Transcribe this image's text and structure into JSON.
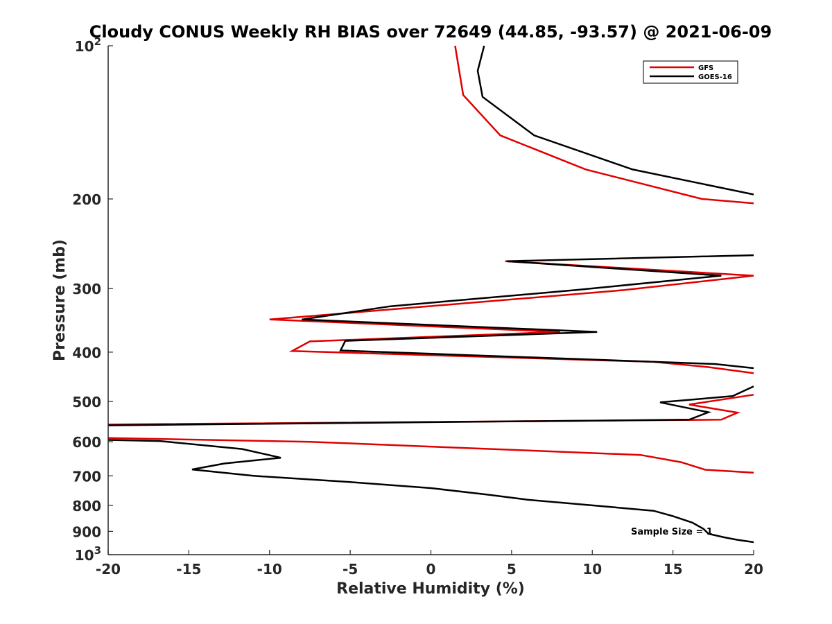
{
  "chart_data": {
    "type": "line",
    "title": "Cloudy CONUS Weekly RH BIAS over 72649 (44.85, -93.57) @ 2021-06-09",
    "xlabel": "Relative Humidity (%)",
    "ylabel": "Pressure (mb)",
    "xlim": [
      -20,
      20
    ],
    "ylim": [
      100,
      1000
    ],
    "yscale": "log",
    "y_reversed": true,
    "grid": false,
    "legend_position": "top-right",
    "x_ticks": [
      "-20",
      "-15",
      "-10",
      "-5",
      "0",
      "5",
      "10",
      "15",
      "20"
    ],
    "y_ticks": [
      {
        "value": 100,
        "label": "10",
        "exp": "2"
      },
      {
        "value": 200,
        "label": "200"
      },
      {
        "value": 300,
        "label": "300"
      },
      {
        "value": 400,
        "label": "400"
      },
      {
        "value": 500,
        "label": "500"
      },
      {
        "value": 600,
        "label": "600"
      },
      {
        "value": 700,
        "label": "700"
      },
      {
        "value": 800,
        "label": "800"
      },
      {
        "value": 900,
        "label": "900"
      },
      {
        "value": 1000,
        "label": "10",
        "exp": "3"
      }
    ],
    "annotation": "Sample Size = 1",
    "series": [
      {
        "name": "GFS",
        "color": "#e00000",
        "points": [
          [
            1.5,
            100
          ],
          [
            2.0,
            125
          ],
          [
            4.3,
            150
          ],
          [
            9.6,
            175
          ],
          [
            16.8,
            200
          ],
          [
            20.0,
            204
          ],
          [
            null,
            null
          ],
          [
            4.6,
            265
          ],
          [
            20.0,
            283
          ],
          [
            12.0,
            302
          ],
          [
            -10.0,
            345
          ],
          [
            8.0,
            365
          ],
          [
            -7.5,
            381
          ],
          [
            -8.6,
            398
          ],
          [
            13.8,
            418
          ],
          [
            17.2,
            428
          ],
          [
            20.0,
            440
          ],
          [
            null,
            null
          ],
          [
            20.0,
            485
          ],
          [
            16.0,
            507
          ],
          [
            19.0,
            526
          ],
          [
            18.0,
            543
          ],
          [
            -20.0,
            555
          ],
          [
            null,
            null
          ],
          [
            -20.0,
            590
          ],
          [
            -7.5,
            600
          ],
          [
            13.0,
            637
          ],
          [
            15.5,
            658
          ],
          [
            17.0,
            681
          ],
          [
            20.0,
            690
          ]
        ]
      },
      {
        "name": "GOES-16",
        "color": "#000000",
        "points": [
          [
            3.3,
            100
          ],
          [
            2.9,
            112
          ],
          [
            3.2,
            126
          ],
          [
            6.4,
            150
          ],
          [
            12.5,
            175
          ],
          [
            20.0,
            196
          ],
          [
            null,
            null
          ],
          [
            20.0,
            258
          ],
          [
            4.7,
            265
          ],
          [
            18.0,
            283
          ],
          [
            9.0,
            302
          ],
          [
            -2.5,
            325
          ],
          [
            -8.0,
            345
          ],
          [
            10.3,
            365
          ],
          [
            -5.3,
            380
          ],
          [
            -5.6,
            397
          ],
          [
            17.6,
            422
          ],
          [
            20.0,
            430
          ],
          [
            null,
            null
          ],
          [
            20.0,
            467
          ],
          [
            18.7,
            488
          ],
          [
            14.2,
            502
          ],
          [
            17.2,
            525
          ],
          [
            16.0,
            543
          ],
          [
            -20.0,
            557
          ],
          [
            null,
            null
          ],
          [
            -20.0,
            595
          ],
          [
            -16.8,
            598
          ],
          [
            -11.7,
            620
          ],
          [
            -9.3,
            645
          ],
          [
            -12.8,
            662
          ],
          [
            -14.8,
            680
          ],
          [
            -11.0,
            700
          ],
          [
            -5.0,
            720
          ],
          [
            0.0,
            740
          ],
          [
            3.5,
            762
          ],
          [
            6.0,
            780
          ],
          [
            10.0,
            800
          ],
          [
            13.8,
            820
          ],
          [
            15.0,
            840
          ],
          [
            16.2,
            865
          ],
          [
            16.9,
            890
          ],
          [
            17.2,
            910
          ],
          [
            18.2,
            925
          ],
          [
            19.0,
            935
          ],
          [
            20.0,
            945
          ]
        ]
      }
    ]
  }
}
